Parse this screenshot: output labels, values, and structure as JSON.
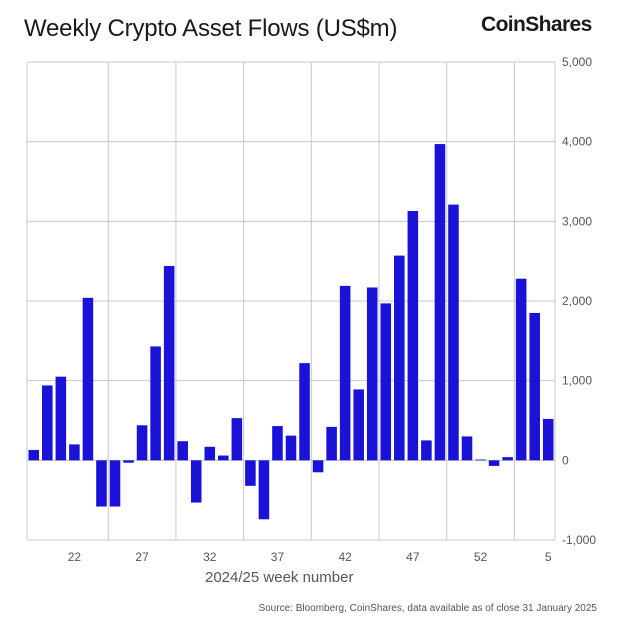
{
  "header": {
    "title": "Weekly Crypto Asset Flows (US$m)",
    "brand": "CoinShares"
  },
  "footer": {
    "source": "Source: Bloomberg, CoinShares, data available as of close 31 January 2025"
  },
  "chart_data": {
    "type": "bar",
    "title": "Weekly Crypto Asset Flows (US$m)",
    "xlabel": "2024/25 week number",
    "ylabel": "",
    "ylim": [
      -1000,
      5000
    ],
    "yticks": [
      -1000,
      0,
      1000,
      2000,
      3000,
      4000,
      5000
    ],
    "ytick_labels": [
      "-1,000",
      "0",
      "1,000",
      "2,000",
      "3,000",
      "4,000",
      "5,000"
    ],
    "xticks": [
      {
        "label": "22",
        "index": 3
      },
      {
        "label": "27",
        "index": 8
      },
      {
        "label": "32",
        "index": 13
      },
      {
        "label": "37",
        "index": 18
      },
      {
        "label": "42",
        "index": 23
      },
      {
        "label": "47",
        "index": 28
      },
      {
        "label": "52",
        "index": 33
      },
      {
        "label": "5",
        "index": 38
      }
    ],
    "categories": [
      "19",
      "20",
      "21",
      "22",
      "23",
      "24",
      "25",
      "26",
      "27",
      "28",
      "29",
      "30",
      "31",
      "32",
      "33",
      "34",
      "35",
      "36",
      "37",
      "38",
      "39",
      "40",
      "41",
      "42",
      "43",
      "44",
      "45",
      "46",
      "47",
      "48",
      "49",
      "50",
      "51",
      "52",
      "1",
      "2",
      "3",
      "4",
      "5"
    ],
    "values": [
      130,
      940,
      1050,
      200,
      2040,
      -580,
      -580,
      -30,
      440,
      1430,
      2440,
      240,
      -530,
      170,
      60,
      530,
      -320,
      -740,
      430,
      310,
      1220,
      -150,
      420,
      2190,
      890,
      2170,
      1970,
      2570,
      3130,
      250,
      3970,
      3210,
      300,
      10,
      -70,
      40,
      2280,
      1850,
      520
    ],
    "grid": true,
    "y_axis_side": "right",
    "bar_color": "#1a12d6"
  }
}
